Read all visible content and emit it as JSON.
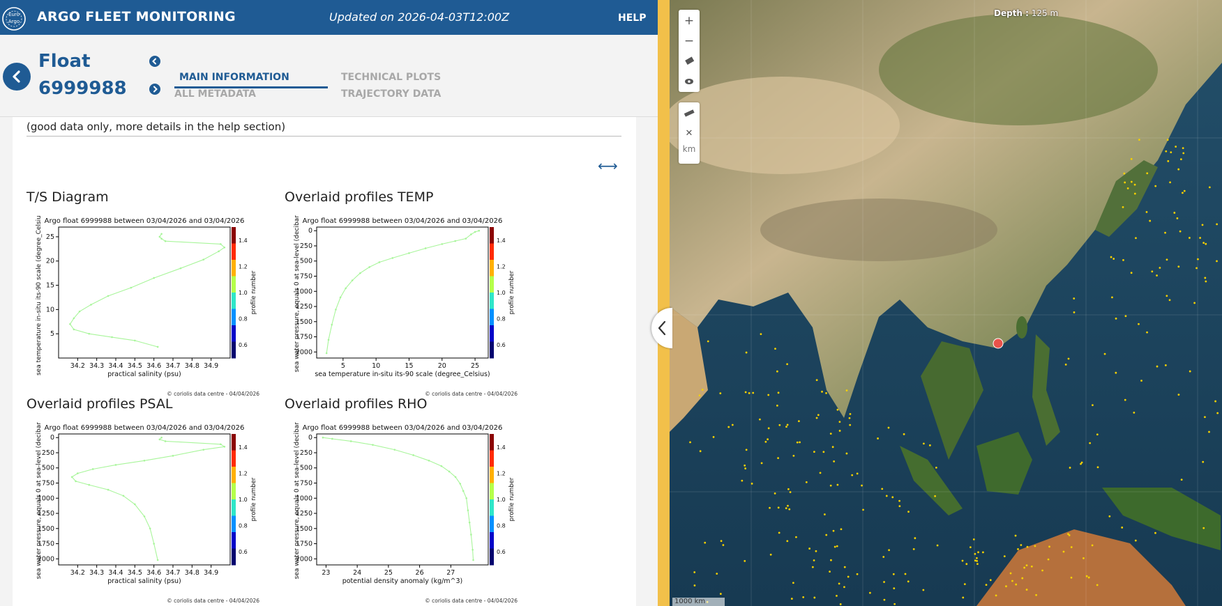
{
  "header": {
    "app_title": "ARGO FLEET MONITORING",
    "updated": "Updated on 2026-04-03T12:00Z",
    "help_label": "HELP",
    "logo_text": "Euro Argo"
  },
  "float": {
    "label": "Float",
    "id": "6999988"
  },
  "tabs": [
    {
      "label": "MAIN INFORMATION",
      "active": true
    },
    {
      "label": "ALL METADATA",
      "active": false
    },
    {
      "label": "TECHNICAL PLOTS",
      "active": false
    },
    {
      "label": "TRAJECTORY DATA",
      "active": false
    }
  ],
  "content": {
    "note": "(good data only, more details in the help section)",
    "expand_icon": "arrows-horizontal"
  },
  "plots": [
    {
      "panel_title": "T/S Diagram",
      "plot_title": "Argo float 6999988 between 03/04/2026 and 03/04/2026",
      "xlabel": "practical salinity (psu)",
      "ylabel": "sea temperature in-situ its-90 scale (degree_Celsius)",
      "colorbar_label": "profile number",
      "credit": "© coriolis data centre - 04/04/2026"
    },
    {
      "panel_title": "Overlaid profiles TEMP",
      "plot_title": "Argo float 6999988 between 03/04/2026 and 03/04/2026",
      "xlabel": "sea temperature in-situ its-90 scale (degree_Celsius)",
      "ylabel": "sea water pressure, equals 0 at sea-level (decibar)",
      "colorbar_label": "profile number",
      "credit": "© coriolis data centre - 04/04/2026"
    },
    {
      "panel_title": "Overlaid profiles PSAL",
      "plot_title": "Argo float 6999988 between 03/04/2026 and 03/04/2026",
      "xlabel": "practical salinity (psu)",
      "ylabel": "sea water pressure, equals 0 at sea-level (decibar)",
      "colorbar_label": "profile number",
      "credit": "© coriolis data centre - 04/04/2026"
    },
    {
      "panel_title": "Overlaid profiles RHO",
      "plot_title": "Argo float 6999988 between 03/04/2026 and 03/04/2026",
      "xlabel": "potential density anomaly (kg/m^3)",
      "ylabel": "sea water pressure, equals 0 at sea-level (decibar)",
      "colorbar_label": "profile number",
      "credit": "© coriolis data centre - 04/04/2026"
    }
  ],
  "chart_data": [
    {
      "type": "scatter",
      "xlim": [
        34.1,
        35.0
      ],
      "ylim": [
        0,
        27
      ],
      "xticks": [
        34.2,
        34.3,
        34.4,
        34.5,
        34.6,
        34.7,
        34.8,
        34.9
      ],
      "yticks": [
        5,
        10,
        15,
        20,
        25
      ],
      "colorbar_ticks": [
        0.6,
        0.8,
        1.0,
        1.2,
        1.4
      ],
      "series": [
        {
          "x": [
            34.64,
            34.63,
            34.64,
            34.66,
            34.95,
            34.97,
            34.94,
            34.86,
            34.74,
            34.6,
            34.48,
            34.36,
            34.27,
            34.21,
            34.18,
            34.16,
            34.18,
            34.26,
            34.38,
            34.5,
            34.62
          ],
          "y": [
            25.6,
            25.0,
            24.6,
            24.1,
            23.5,
            22.8,
            22.0,
            20.3,
            18.5,
            16.5,
            14.5,
            12.8,
            11.0,
            9.6,
            8.2,
            7.0,
            5.9,
            5.0,
            4.3,
            3.6,
            2.3
          ]
        }
      ]
    },
    {
      "type": "line",
      "xlim": [
        1,
        27
      ],
      "ylim": [
        2100,
        -60
      ],
      "xticks": [
        5,
        10,
        15,
        20,
        25
      ],
      "yticks": [
        0,
        250,
        500,
        750,
        1000,
        1250,
        1500,
        1750,
        2000
      ],
      "colorbar_ticks": [
        0.6,
        0.8,
        1.0,
        1.2,
        1.4
      ],
      "series": [
        {
          "x": [
            25.6,
            25.0,
            24.4,
            23.6,
            22.0,
            20.0,
            17.5,
            15.0,
            12.5,
            10.5,
            9.0,
            7.6,
            6.4,
            5.4,
            4.6,
            3.9,
            3.3,
            2.8,
            2.5
          ],
          "y": [
            0,
            20,
            60,
            130,
            170,
            220,
            290,
            370,
            450,
            520,
            600,
            700,
            820,
            950,
            1100,
            1300,
            1550,
            1800,
            2020
          ]
        }
      ]
    },
    {
      "type": "line",
      "xlim": [
        34.1,
        35.0
      ],
      "ylim": [
        2100,
        -60
      ],
      "xticks": [
        34.2,
        34.3,
        34.4,
        34.5,
        34.6,
        34.7,
        34.8,
        34.9
      ],
      "yticks": [
        0,
        250,
        500,
        750,
        1000,
        1250,
        1500,
        1750,
        2000
      ],
      "colorbar_ticks": [
        0.6,
        0.8,
        1.0,
        1.2,
        1.4
      ],
      "series": [
        {
          "x": [
            34.64,
            34.63,
            34.66,
            34.95,
            34.97,
            34.86,
            34.7,
            34.55,
            34.4,
            34.28,
            34.2,
            34.17,
            34.19,
            34.26,
            34.36,
            34.44,
            34.5,
            34.55,
            34.58,
            34.6,
            34.62
          ],
          "y": [
            0,
            30,
            60,
            110,
            150,
            200,
            300,
            380,
            450,
            520,
            590,
            650,
            720,
            780,
            860,
            960,
            1100,
            1300,
            1500,
            1750,
            2020
          ]
        }
      ]
    },
    {
      "type": "line",
      "xlim": [
        22.7,
        28.2
      ],
      "ylim": [
        2100,
        -60
      ],
      "xticks": [
        23,
        24,
        25,
        26,
        27
      ],
      "yticks": [
        0,
        250,
        500,
        750,
        1000,
        1250,
        1500,
        1750,
        2000
      ],
      "colorbar_ticks": [
        0.6,
        0.8,
        1.0,
        1.2,
        1.4
      ],
      "series": [
        {
          "x": [
            22.9,
            23.2,
            23.8,
            24.5,
            25.2,
            25.8,
            26.3,
            26.7,
            26.95,
            27.15,
            27.3,
            27.4,
            27.5,
            27.55,
            27.6,
            27.65,
            27.7,
            27.72
          ],
          "y": [
            0,
            20,
            60,
            120,
            200,
            290,
            380,
            470,
            560,
            650,
            760,
            880,
            1000,
            1200,
            1400,
            1600,
            1850,
            2020
          ]
        }
      ]
    }
  ],
  "map": {
    "depth_label": "Depth :",
    "depth_value": "125 m",
    "scale_label": "1000 km",
    "km_label": "km",
    "zoom_in_icon": "plus",
    "zoom_out_icon": "minus",
    "eraser_icon": "eraser",
    "eye_icon": "eye",
    "ruler_icon": "ruler",
    "close_icon": "close",
    "float_marker_color": "#e8524a",
    "fleet_dot_color": "#f5d000"
  }
}
